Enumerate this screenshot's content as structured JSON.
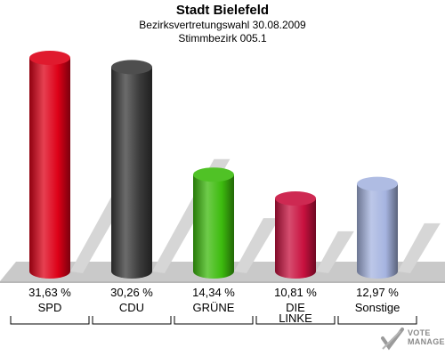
{
  "header": {
    "title": "Stadt Bielefeld",
    "subtitle": "Bezirksvertretungswahl 30.08.2009",
    "district": "Stimmbezirk 005.1"
  },
  "chart_data": {
    "type": "bar",
    "title": "Stadt Bielefeld",
    "subtitle": "Bezirksvertretungswahl 30.08.2009 / Stimmbezirk 005.1",
    "categories": [
      "SPD",
      "CDU",
      "GRÜNE",
      "DIE LINKE",
      "Sonstige"
    ],
    "category_lines": [
      [
        "SPD"
      ],
      [
        "CDU"
      ],
      [
        "GRÜNE"
      ],
      [
        "DIE",
        "LINKE"
      ],
      [
        "Sonstige"
      ]
    ],
    "values": [
      31.63,
      30.26,
      14.34,
      10.81,
      12.97
    ],
    "value_labels": [
      "31,63 %",
      "30,26 %",
      "14,34 %",
      "10,81 %",
      "12,97 %"
    ],
    "colors": [
      "#dd0017",
      "#3a3a3a",
      "#3dbb0e",
      "#c8113f",
      "#a6b4e0"
    ],
    "unit": "%",
    "ylim": [
      0,
      31.63
    ],
    "grid": false,
    "legend": "none",
    "style": "3d-cylinder"
  },
  "logo": {
    "text_line1": "VOTE",
    "text_line2": "MANAGER"
  }
}
